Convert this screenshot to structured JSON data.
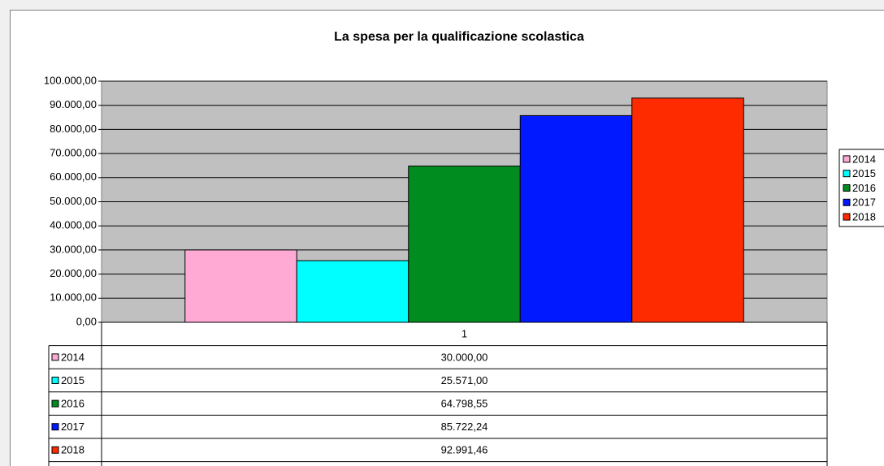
{
  "chart_data": {
    "type": "bar",
    "title": "La spesa per la qualificazione scolastica",
    "categories": [
      "1"
    ],
    "series": [
      {
        "name": "2014",
        "color": "#ffaad4",
        "values": [
          30000
        ],
        "value_labels": [
          "30.000,00"
        ]
      },
      {
        "name": "2015",
        "color": "#00ffff",
        "values": [
          25571
        ],
        "value_labels": [
          "25.571,00"
        ]
      },
      {
        "name": "2016",
        "color": "#008c1e",
        "values": [
          64798.55
        ],
        "value_labels": [
          "64.798,55"
        ]
      },
      {
        "name": "2017",
        "color": "#0019ff",
        "values": [
          85722.24
        ],
        "value_labels": [
          "85.722,24"
        ]
      },
      {
        "name": "2018",
        "color": "#ff2b00",
        "values": [
          92991.46
        ],
        "value_labels": [
          "92.991,46"
        ]
      }
    ],
    "ylim": [
      0,
      100000
    ],
    "yticks": [
      {
        "value": 0,
        "label": "0,00"
      },
      {
        "value": 10000,
        "label": "10.000,00"
      },
      {
        "value": 20000,
        "label": "20.000,00"
      },
      {
        "value": 30000,
        "label": "30.000,00"
      },
      {
        "value": 40000,
        "label": "40.000,00"
      },
      {
        "value": 50000,
        "label": "50.000,00"
      },
      {
        "value": 60000,
        "label": "60.000,00"
      },
      {
        "value": 70000,
        "label": "70.000,00"
      },
      {
        "value": 80000,
        "label": "80.000,00"
      },
      {
        "value": 90000,
        "label": "90.000,00"
      },
      {
        "value": 100000,
        "label": "100.000,00"
      }
    ],
    "grid": true,
    "legend": "right",
    "plot_background": "#c0c0c0"
  }
}
